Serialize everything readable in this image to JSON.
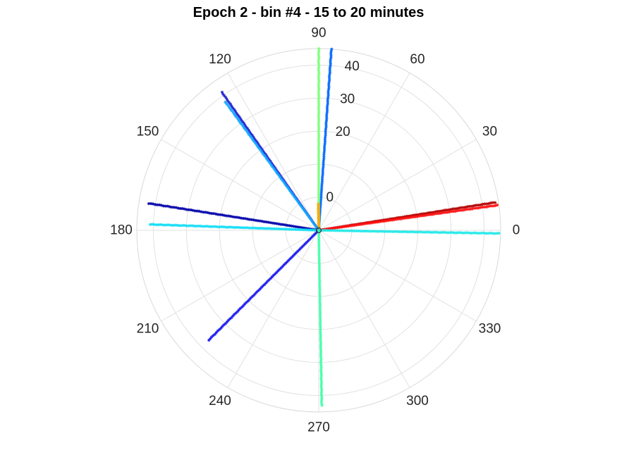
{
  "chart_data": {
    "type": "scatter",
    "coordinate_system": "polar",
    "title": "Epoch 2 - bin #4 - 15 to 20 minutes",
    "angle_unit": "degrees",
    "angle_ticks": [
      "0",
      "30",
      "60",
      "90",
      "120",
      "150",
      "180",
      "210",
      "240",
      "270",
      "300",
      "330"
    ],
    "radius_ticks": [
      "0",
      "20",
      "30",
      "40"
    ],
    "radius_tick_values": [
      0,
      20,
      30,
      40
    ],
    "radius_tick_angle_deg": 82,
    "rlim": [
      -10,
      45
    ],
    "angle_grid_step_deg": 30,
    "grid": true,
    "series": [
      {
        "angle_deg": 9,
        "r_start": -10,
        "r_end": 44,
        "color": "#b00000"
      },
      {
        "angle_deg": 8,
        "r_start": -10,
        "r_end": 44.5,
        "color": "#ff1010"
      },
      {
        "angle_deg": -1,
        "r_start": -10,
        "r_end": 44.5,
        "color": "#20e8e8"
      },
      {
        "angle_deg": 86,
        "r_start": -10,
        "r_end": 45,
        "color": "#0066ff"
      },
      {
        "angle_deg": 90,
        "r_start": -10,
        "r_end": 45,
        "color": "#7dff7a"
      },
      {
        "angle_deg": 91,
        "r_start": -10,
        "r_end": -2,
        "color": "#ffaa00"
      },
      {
        "angle_deg": 125,
        "r_start": -10,
        "r_end": 41,
        "color": "#2222d0"
      },
      {
        "angle_deg": 126,
        "r_start": -10,
        "r_end": 38,
        "color": "#10a8ff"
      },
      {
        "angle_deg": 171,
        "r_start": -10,
        "r_end": 42,
        "color": "#0000aa"
      },
      {
        "angle_deg": 178,
        "r_start": -10,
        "r_end": 41,
        "color": "#10ddf5"
      },
      {
        "angle_deg": 225,
        "r_start": -10,
        "r_end": 37,
        "color": "#1a1aee"
      },
      {
        "angle_deg": 271,
        "r_start": -10,
        "r_end": 43,
        "color": "#40ffaa"
      }
    ]
  }
}
